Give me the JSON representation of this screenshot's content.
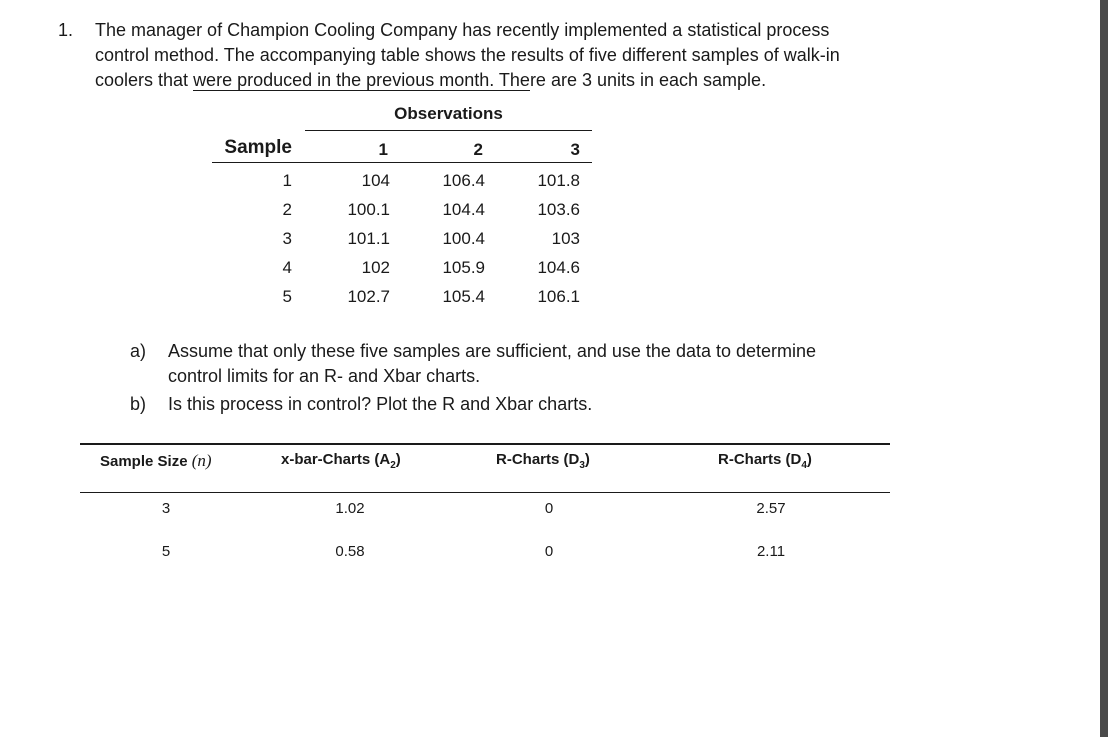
{
  "question": {
    "number": "1.",
    "line1": "The manager of Champion Cooling Company has recently implemented a statistical process",
    "line2": "control method. The accompanying table shows the results of five different samples of walk-in",
    "line3_before": "coolers that ",
    "line3_underlined": "were produced in the previous month. The",
    "line3_after": "re are 3 units in each sample."
  },
  "obs_table": {
    "group_header": "Observations",
    "sample_header": "Sample",
    "columns": [
      "1",
      "2",
      "3"
    ],
    "rows": [
      {
        "sample": "1",
        "values": [
          "104",
          "106.4",
          "101.8"
        ]
      },
      {
        "sample": "2",
        "values": [
          "100.1",
          "104.4",
          "103.6"
        ]
      },
      {
        "sample": "3",
        "values": [
          "101.1",
          "100.4",
          "103"
        ]
      },
      {
        "sample": "4",
        "values": [
          "102",
          "105.9",
          "104.6"
        ]
      },
      {
        "sample": "5",
        "values": [
          "102.7",
          "105.4",
          "106.1"
        ]
      }
    ]
  },
  "parts": [
    {
      "label": "a)",
      "line1": "Assume that only these five samples are sufficient, and use the data to determine",
      "line2": "control limits for an R- and Xbar charts."
    },
    {
      "label": "b)",
      "line1": "Is this process in control? Plot the R and Xbar charts."
    }
  ],
  "factors_table": {
    "headers": {
      "size": "Sample Size",
      "size_var": "(n)",
      "a2": "x-bar-Charts (A",
      "a2_sub": "2",
      "d3": "R-Charts (D",
      "d3_sub": "3",
      "d4": "R-Charts (D",
      "d4_sub": "4",
      "close": ")"
    },
    "rows": [
      {
        "n": "3",
        "a2": "1.02",
        "d3": "0",
        "d4": "2.57"
      },
      {
        "n": "5",
        "a2": "0.58",
        "d3": "0",
        "d4": "2.11"
      }
    ]
  }
}
